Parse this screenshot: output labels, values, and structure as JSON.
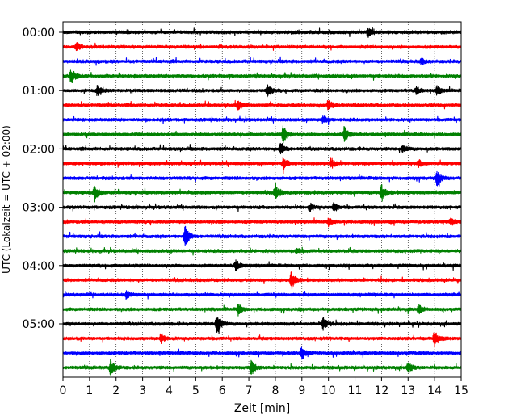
{
  "chart_data": {
    "type": "line",
    "title": "",
    "xlabel": "Zeit  [min]",
    "ylabel": "UTC (Lokalzeit = UTC + 02:00)",
    "xlim": [
      0,
      15
    ],
    "x_ticks": [
      0,
      1,
      2,
      3,
      4,
      5,
      6,
      7,
      8,
      9,
      10,
      11,
      12,
      13,
      14,
      15
    ],
    "x_tick_labels": [
      "0",
      "1",
      "2",
      "3",
      "4",
      "5",
      "6",
      "7",
      "8",
      "9",
      "10",
      "11",
      "12",
      "13",
      "14",
      "15"
    ],
    "y_ticks": [
      "00:00",
      "01:00",
      "02:00",
      "03:00",
      "04:00",
      "05:00"
    ],
    "trace_interval_minutes": 15,
    "trace_colors": [
      "#000000",
      "#ff0000",
      "#0000ff",
      "#008000"
    ],
    "grid_x": "dotted",
    "series": [
      {
        "start": "00:00",
        "events": [
          {
            "t": 11.5,
            "a": 0.5
          }
        ]
      },
      {
        "start": "00:15",
        "events": [
          {
            "t": 0.5,
            "a": 0.5
          }
        ]
      },
      {
        "start": "00:30",
        "events": [
          {
            "t": 13.5,
            "a": 0.3
          }
        ]
      },
      {
        "start": "00:45",
        "events": [
          {
            "t": 0.3,
            "a": 1.0
          }
        ]
      },
      {
        "start": "01:00",
        "events": [
          {
            "t": 1.3,
            "a": 0.6
          },
          {
            "t": 7.7,
            "a": 0.7
          },
          {
            "t": 13.3,
            "a": 0.4
          },
          {
            "t": 14.1,
            "a": 0.5
          }
        ]
      },
      {
        "start": "01:15",
        "events": [
          {
            "t": 6.6,
            "a": 0.5
          },
          {
            "t": 10.0,
            "a": 0.7
          }
        ]
      },
      {
        "start": "01:30",
        "events": [
          {
            "t": 9.8,
            "a": 0.5
          }
        ]
      },
      {
        "start": "01:45",
        "events": [
          {
            "t": 8.3,
            "a": 1.0
          },
          {
            "t": 10.6,
            "a": 0.9
          }
        ]
      },
      {
        "start": "02:00",
        "events": [
          {
            "t": 8.2,
            "a": 0.8
          },
          {
            "t": 12.8,
            "a": 0.4
          }
        ]
      },
      {
        "start": "02:15",
        "events": [
          {
            "t": 8.3,
            "a": 0.7
          },
          {
            "t": 10.1,
            "a": 0.6
          },
          {
            "t": 13.4,
            "a": 0.4
          }
        ]
      },
      {
        "start": "02:30",
        "events": [
          {
            "t": 14.1,
            "a": 0.9
          }
        ]
      },
      {
        "start": "02:45",
        "events": [
          {
            "t": 1.2,
            "a": 0.9
          },
          {
            "t": 8.0,
            "a": 1.0
          },
          {
            "t": 12.0,
            "a": 0.9
          }
        ]
      },
      {
        "start": "03:00",
        "events": [
          {
            "t": 9.3,
            "a": 0.4
          },
          {
            "t": 10.2,
            "a": 0.5
          }
        ]
      },
      {
        "start": "03:15",
        "events": [
          {
            "t": 10.0,
            "a": 0.4
          },
          {
            "t": 14.6,
            "a": 0.4
          }
        ]
      },
      {
        "start": "03:30",
        "events": [
          {
            "t": 4.6,
            "a": 1.3
          }
        ]
      },
      {
        "start": "03:45",
        "events": [
          {
            "t": 8.8,
            "a": 0.3
          }
        ]
      },
      {
        "start": "04:00",
        "events": [
          {
            "t": 6.5,
            "a": 0.6
          }
        ]
      },
      {
        "start": "04:15",
        "events": [
          {
            "t": 8.6,
            "a": 1.0
          }
        ]
      },
      {
        "start": "04:30",
        "events": [
          {
            "t": 2.4,
            "a": 0.4
          }
        ]
      },
      {
        "start": "04:45",
        "events": [
          {
            "t": 6.6,
            "a": 0.6
          },
          {
            "t": 13.4,
            "a": 0.5
          }
        ]
      },
      {
        "start": "05:00",
        "events": [
          {
            "t": 5.8,
            "a": 1.3
          },
          {
            "t": 9.8,
            "a": 0.8
          }
        ]
      },
      {
        "start": "05:15",
        "events": [
          {
            "t": 3.7,
            "a": 0.5
          },
          {
            "t": 14.0,
            "a": 1.0
          }
        ]
      },
      {
        "start": "05:30",
        "events": [
          {
            "t": 9.0,
            "a": 0.7
          }
        ]
      },
      {
        "start": "05:45",
        "events": [
          {
            "t": 1.8,
            "a": 0.9
          },
          {
            "t": 7.1,
            "a": 0.9
          },
          {
            "t": 13.0,
            "a": 0.6
          }
        ]
      }
    ]
  }
}
